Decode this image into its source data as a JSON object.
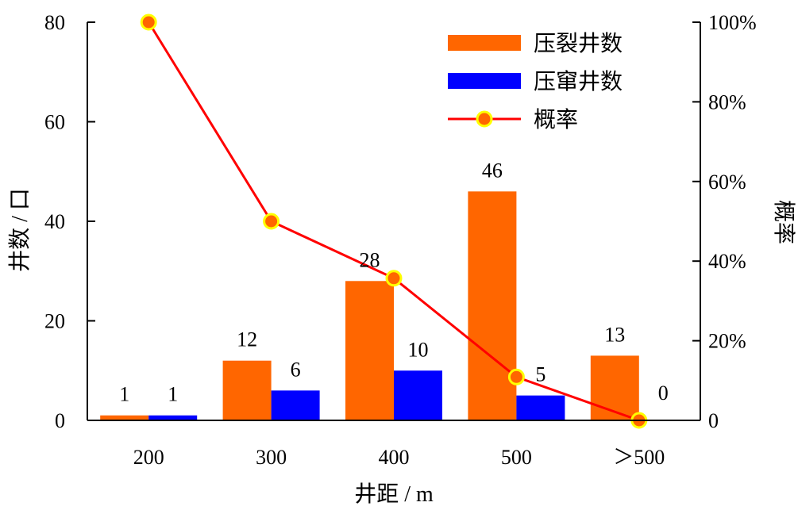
{
  "chart_data": {
    "type": "bar",
    "categories": [
      "200",
      "300",
      "400",
      "500",
      "＞500"
    ],
    "series": [
      {
        "name": "压裂井数",
        "type": "bar",
        "axis": "left",
        "color": "#ff6600",
        "values": [
          1,
          12,
          28,
          46,
          13
        ]
      },
      {
        "name": "压窜井数",
        "type": "bar",
        "axis": "left",
        "color": "#0000ff",
        "values": [
          1,
          6,
          10,
          5,
          0
        ]
      },
      {
        "name": "概率",
        "type": "line",
        "axis": "right",
        "color": "#ff0000",
        "marker_fill": "#ff6600",
        "marker_edge": "#ffff00",
        "values": [
          100,
          50,
          35.7,
          10.9,
          0
        ]
      }
    ],
    "data_labels": {
      "压裂井数": [
        "1",
        "12",
        "28",
        "46",
        "13"
      ],
      "压窜井数": [
        "1",
        "6",
        "10",
        "5",
        "0"
      ]
    },
    "xlabel": "井距 / m",
    "ylabel": "井数 / 口",
    "y2label": "概率",
    "ylim": [
      0,
      80
    ],
    "y2lim": [
      0,
      100
    ],
    "yticks": [
      "0",
      "20",
      "40",
      "60",
      "80"
    ],
    "y2ticks": [
      "0",
      "20%",
      "40%",
      "60%",
      "80%",
      "100%"
    ],
    "legend": {
      "position": "top-right"
    },
    "grid": false
  }
}
